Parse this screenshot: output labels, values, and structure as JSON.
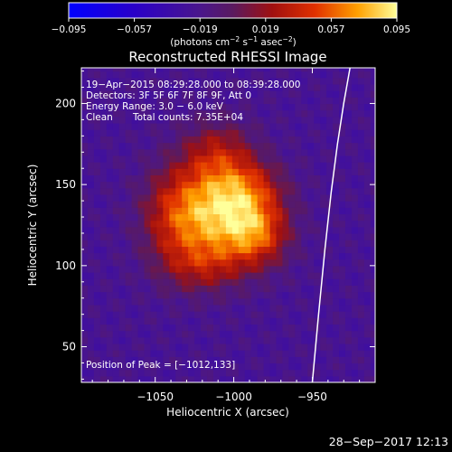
{
  "chart_data": {
    "type": "heatmap",
    "title": "Reconstructed RHESSI Image",
    "xlabel": "Heliocentric X (arcsec)",
    "ylabel": "Heliocentric Y (arcsec)",
    "xlim": [
      -1097,
      -910
    ],
    "ylim": [
      28,
      222
    ],
    "xticks": [
      -1050,
      -1000,
      -950
    ],
    "yticks": [
      50,
      100,
      150,
      200
    ],
    "colorbar": {
      "min": -0.095,
      "max": 0.095,
      "ticks": [
        -0.095,
        -0.057,
        -0.019,
        0.019,
        0.057,
        0.095
      ],
      "tick_labels": [
        "−0.095",
        "−0.057",
        "−0.019",
        "0.019",
        "0.057",
        "0.095"
      ],
      "unit_label_parts": [
        "(photons cm",
        "−2",
        " s",
        "−1",
        " asec",
        "−2",
        ")"
      ]
    },
    "annotations": [
      "19−Apr−2015 08:29:28.000 to 08:39:28.000",
      "Detectors: 3F 5F 6F 7F 8F 9F, Att 0",
      "Energy Range: 3.0 − 6.0 keV"
    ],
    "clean_label": "Clean",
    "total_counts": "Total counts: 7.35E+04",
    "peak_label": "Position of Peak = [−1012,133]",
    "sources": [
      {
        "x": -1012,
        "y": 133,
        "sigma_x": 22,
        "sigma_y": 20,
        "amp": 0.095
      },
      {
        "x": -985,
        "y": 120,
        "sigma_x": 14,
        "sigma_y": 14,
        "amp": 0.058
      },
      {
        "x": -990,
        "y": 148,
        "sigma_x": 16,
        "sigma_y": 12,
        "amp": 0.035
      },
      {
        "x": -1010,
        "y": 170,
        "sigma_x": 16,
        "sigma_y": 14,
        "amp": 0.04
      },
      {
        "x": -1040,
        "y": 130,
        "sigma_x": 14,
        "sigma_y": 22,
        "amp": 0.03
      },
      {
        "x": -1020,
        "y": 100,
        "sigma_x": 18,
        "sigma_y": 12,
        "amp": 0.035
      }
    ],
    "limb_curve": [
      {
        "x": -950,
        "y": 28
      },
      {
        "x": -946,
        "y": 70
      },
      {
        "x": -942,
        "y": 110
      },
      {
        "x": -938,
        "y": 145
      },
      {
        "x": -934,
        "y": 175
      },
      {
        "x": -930,
        "y": 200
      },
      {
        "x": -926,
        "y": 222
      }
    ],
    "background_level": -0.022,
    "grid": false
  },
  "footer": {
    "timestamp": "28−Sep−2017 12:13"
  }
}
